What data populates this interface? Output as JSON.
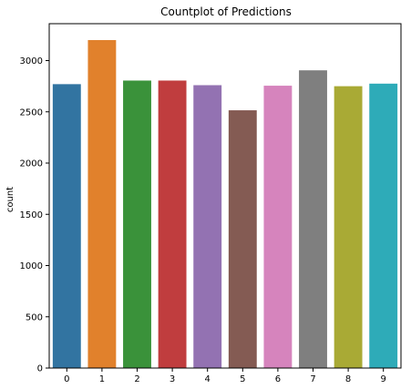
{
  "chart_data": {
    "type": "bar",
    "title": "Countplot of Predictions",
    "xlabel": "",
    "ylabel": "count",
    "categories": [
      "0",
      "1",
      "2",
      "3",
      "4",
      "5",
      "6",
      "7",
      "8",
      "9"
    ],
    "values": [
      2770,
      3200,
      2805,
      2805,
      2760,
      2515,
      2755,
      2905,
      2750,
      2775
    ],
    "colors": [
      "#3274a1",
      "#e1812c",
      "#3a923a",
      "#c03d3e",
      "#9372b2",
      "#845b53",
      "#d684bd",
      "#7f7f7f",
      "#a9aa35",
      "#2eabb8"
    ],
    "ylim": [
      0,
      3360
    ],
    "yticks": [
      0,
      500,
      1000,
      1500,
      2000,
      2500,
      3000
    ],
    "grid": false,
    "legend": "none"
  }
}
